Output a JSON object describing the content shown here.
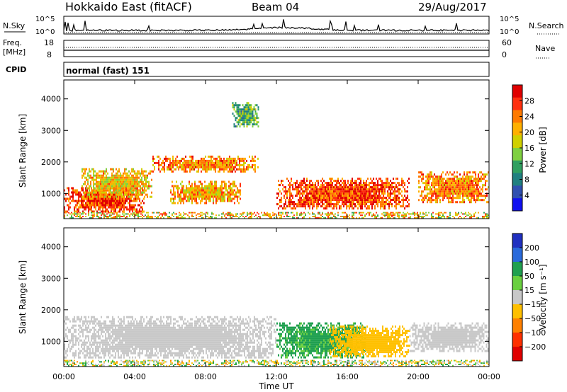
{
  "header": {
    "station": "Hokkaido East (fitACF)",
    "beam": "Beam 04",
    "date": "29/Aug/2017"
  },
  "noise_panel": {
    "left_label": "N.Sky",
    "right_label": "N.Search",
    "tick_top": "10^5",
    "tick_bottom": "10^0"
  },
  "freq_panel": {
    "left_label_1": "Freq.",
    "left_label_2": "[MHz]",
    "left_ticks": [
      "18",
      "8"
    ],
    "right_label": "Nave",
    "right_ticks": [
      "60",
      "0"
    ]
  },
  "cpid_panel": {
    "label": "CPID",
    "text": "normal (fast) 151"
  },
  "power_panel": {
    "ylabel": "Slant Range [km]",
    "colorbar_label": "Power [dB]",
    "colorbar_ticks": [
      "28",
      "24",
      "20",
      "16",
      "12",
      "8",
      "4"
    ],
    "colorbar_colors": [
      "#e00000",
      "#ff3010",
      "#ff7a00",
      "#ffb000",
      "#d0d000",
      "#7fd040",
      "#30a060",
      "#208080",
      "#3050b0",
      "#1010f0"
    ]
  },
  "velocity_panel": {
    "ylabel": "Slant Range [km]",
    "colorbar_label": "Velocity [m s⁻¹]",
    "colorbar_ticks": [
      "200",
      "100",
      "50",
      "15",
      "−15",
      "−50",
      "−100",
      "−200"
    ],
    "colorbar_colors": [
      "#2030c0",
      "#2a6adb",
      "#20a050",
      "#6ad040",
      "#c8c8c8",
      "#ffc000",
      "#ff8000",
      "#ff3000",
      "#e00000"
    ]
  },
  "xaxis": {
    "label": "Time UT",
    "ticks": [
      "00:00",
      "04:00",
      "08:00",
      "12:00",
      "16:00",
      "20:00",
      "00:00"
    ]
  },
  "chart_data": {
    "type": "heatmap",
    "title": "Hokkaido East (fitACF) Beam 04 29/Aug/2017",
    "xlabel": "Time UT",
    "ylabel": "Slant Range [km]",
    "xlim_hours": [
      0,
      24
    ],
    "ylim": [
      200,
      4600
    ],
    "power_regions_db": [
      {
        "t_start": 0.0,
        "t_end": 4.5,
        "r_start": 400,
        "r_end": 1200,
        "value": 28
      },
      {
        "t_start": 1.0,
        "t_end": 5.0,
        "r_start": 900,
        "r_end": 1800,
        "value": 20
      },
      {
        "t_start": 5.0,
        "t_end": 11.0,
        "r_start": 1700,
        "r_end": 2200,
        "value": 24
      },
      {
        "t_start": 6.0,
        "t_end": 10.0,
        "r_start": 700,
        "r_end": 1400,
        "value": 22
      },
      {
        "t_start": 9.5,
        "t_end": 11.0,
        "r_start": 3100,
        "r_end": 3900,
        "value": 12
      },
      {
        "t_start": 12.0,
        "t_end": 19.5,
        "r_start": 500,
        "r_end": 1500,
        "value": 28
      },
      {
        "t_start": 20.0,
        "t_end": 24.0,
        "r_start": 700,
        "r_end": 1700,
        "value": 24
      }
    ],
    "velocity_regions_ms": [
      {
        "t_start": 0.0,
        "t_end": 12.0,
        "r_start": 500,
        "r_end": 1800,
        "value": 0
      },
      {
        "t_start": 12.0,
        "t_end": 17.0,
        "r_start": 500,
        "r_end": 1600,
        "value": 40
      },
      {
        "t_start": 15.0,
        "t_end": 19.5,
        "r_start": 500,
        "r_end": 1500,
        "value": -30
      },
      {
        "t_start": 19.5,
        "t_end": 24.0,
        "r_start": 700,
        "r_end": 1600,
        "value": 0
      }
    ]
  }
}
